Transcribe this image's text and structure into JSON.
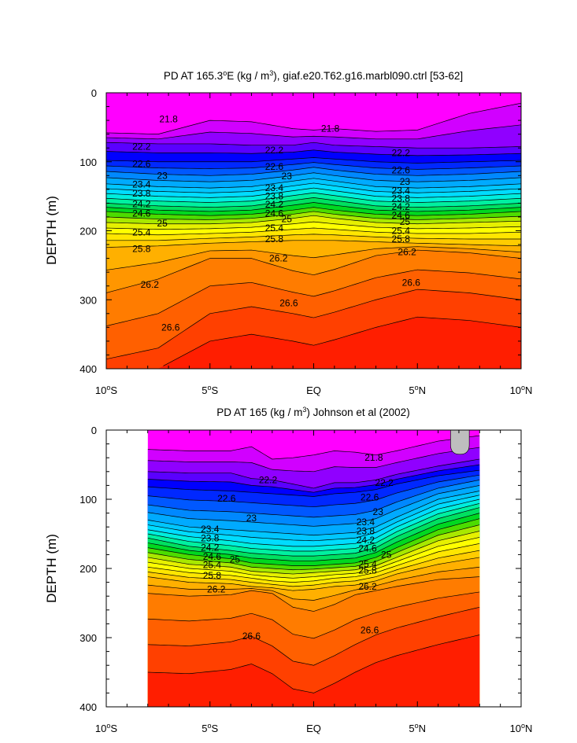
{
  "chart_data": [
    {
      "type": "contour",
      "title_parts": [
        "PD AT 165.3",
        "o",
        "E (kg / m",
        "3",
        "), giaf.e20.T62.g16.marbl090.ctrl [53-62]"
      ],
      "ylabel": "DEPTH (m)",
      "xlabel": "",
      "xlim": [
        -10,
        10
      ],
      "ylim": [
        400,
        0
      ],
      "y_inverted": true,
      "data_xlim": [
        -10,
        10
      ],
      "yticks": [
        0,
        100,
        200,
        300,
        400
      ],
      "xticks": [
        -10,
        -5,
        0,
        5,
        10
      ],
      "xtick_labels": [
        {
          "pre": "10",
          "sup": "o",
          "post": "S"
        },
        {
          "pre": "5",
          "sup": "o",
          "post": "S"
        },
        {
          "pre": "EQ",
          "sup": "",
          "post": ""
        },
        {
          "pre": "5",
          "sup": "o",
          "post": "N"
        },
        {
          "pre": "10",
          "sup": "o",
          "post": "N"
        }
      ],
      "levels": [
        21.8,
        22.2,
        22.6,
        23,
        23.4,
        23.8,
        24.2,
        24.6,
        25,
        25.4,
        25.8,
        26.2,
        26.6
      ],
      "level_step": 0.2,
      "isopycnal_depths": {
        "x": [
          -10,
          -7.5,
          -5,
          -3,
          -1,
          0,
          1,
          3,
          5,
          7.5,
          10
        ],
        "21.8": [
          58,
          60,
          40,
          42,
          52,
          54,
          52,
          56,
          54,
          30,
          15
        ],
        "22.2": [
          72,
          74,
          74,
          76,
          76,
          72,
          76,
          78,
          80,
          80,
          78
        ],
        "22.6": [
          98,
          100,
          100,
          100,
          96,
          94,
          96,
          100,
          102,
          100,
          98
        ],
        "23": [
          114,
          118,
          120,
          118,
          112,
          108,
          112,
          118,
          120,
          118,
          114
        ],
        "23.4": [
          132,
          136,
          138,
          136,
          128,
          124,
          128,
          136,
          138,
          136,
          132
        ],
        "23.8": [
          146,
          150,
          152,
          150,
          142,
          138,
          142,
          150,
          152,
          150,
          146
        ],
        "24.2": [
          160,
          164,
          166,
          164,
          156,
          152,
          156,
          164,
          166,
          164,
          160
        ],
        "24.6": [
          172,
          176,
          178,
          176,
          170,
          166,
          170,
          176,
          178,
          176,
          172
        ],
        "25": [
          188,
          190,
          190,
          188,
          182,
          178,
          182,
          188,
          190,
          188,
          186
        ],
        "25.4": [
          204,
          206,
          204,
          202,
          198,
          196,
          198,
          202,
          204,
          204,
          202
        ],
        "25.8": [
          224,
          222,
          218,
          216,
          214,
          214,
          214,
          216,
          218,
          220,
          222
        ],
        "26.2": [
          290,
          270,
          240,
          240,
          258,
          264,
          256,
          236,
          228,
          232,
          240
        ],
        "26.6": [
          386,
          370,
          320,
          310,
          320,
          326,
          318,
          300,
          285,
          290,
          300
        ]
      },
      "labels": [
        {
          "text": "21.8",
          "x": -7.0,
          "y": 38
        },
        {
          "text": "21.8",
          "x": 0.8,
          "y": 52
        },
        {
          "text": "22.2",
          "x": -8.3,
          "y": 78
        },
        {
          "text": "22.2",
          "x": -1.9,
          "y": 83
        },
        {
          "text": "22.2",
          "x": 4.2,
          "y": 87
        },
        {
          "text": "22.6",
          "x": -8.3,
          "y": 103
        },
        {
          "text": "22.6",
          "x": -1.9,
          "y": 107
        },
        {
          "text": "22.6",
          "x": 4.2,
          "y": 112
        },
        {
          "text": "23",
          "x": -7.3,
          "y": 120
        },
        {
          "text": "23",
          "x": -1.3,
          "y": 121
        },
        {
          "text": "23",
          "x": 4.4,
          "y": 129
        },
        {
          "text": "23.4",
          "x": -8.3,
          "y": 133
        },
        {
          "text": "23.4",
          "x": -1.9,
          "y": 138
        },
        {
          "text": "23.4",
          "x": 4.2,
          "y": 142
        },
        {
          "text": "23.8",
          "x": -8.3,
          "y": 146
        },
        {
          "text": "23.8",
          "x": -1.9,
          "y": 150
        },
        {
          "text": "23.8",
          "x": 4.2,
          "y": 153
        },
        {
          "text": "24.2",
          "x": -8.3,
          "y": 161
        },
        {
          "text": "24.2",
          "x": -1.9,
          "y": 162
        },
        {
          "text": "24.2",
          "x": 4.2,
          "y": 165
        },
        {
          "text": "24.6",
          "x": -8.3,
          "y": 175
        },
        {
          "text": "24.6",
          "x": -1.9,
          "y": 175
        },
        {
          "text": "24.6",
          "x": 4.2,
          "y": 178
        },
        {
          "text": "25",
          "x": -7.3,
          "y": 189
        },
        {
          "text": "25",
          "x": -1.3,
          "y": 183
        },
        {
          "text": "25",
          "x": 4.4,
          "y": 187
        },
        {
          "text": "25.4",
          "x": -8.3,
          "y": 202
        },
        {
          "text": "25.4",
          "x": -1.9,
          "y": 196
        },
        {
          "text": "25.4",
          "x": 4.2,
          "y": 200
        },
        {
          "text": "25.8",
          "x": -8.3,
          "y": 226
        },
        {
          "text": "25.8",
          "x": -1.9,
          "y": 212
        },
        {
          "text": "25.8",
          "x": 4.2,
          "y": 212
        },
        {
          "text": "26.2",
          "x": -7.9,
          "y": 278
        },
        {
          "text": "26.2",
          "x": -1.7,
          "y": 240
        },
        {
          "text": "26.2",
          "x": 4.5,
          "y": 231
        },
        {
          "text": "26.6",
          "x": -6.9,
          "y": 340
        },
        {
          "text": "26.6",
          "x": -1.2,
          "y": 305
        },
        {
          "text": "26.6",
          "x": 4.7,
          "y": 275
        }
      ]
    },
    {
      "type": "contour",
      "title_parts": [
        "PD AT 165 (kg / m",
        "3",
        ") Johnson et al (2002)"
      ],
      "ylabel": "DEPTH (m)",
      "xlabel": "",
      "xlim": [
        -10,
        10
      ],
      "ylim": [
        400,
        0
      ],
      "y_inverted": true,
      "data_xlim": [
        -8,
        8
      ],
      "yticks": [
        0,
        100,
        200,
        300,
        400
      ],
      "xticks": [
        -10,
        -5,
        0,
        5,
        10
      ],
      "xtick_labels": [
        {
          "pre": "10",
          "sup": "o",
          "post": "S"
        },
        {
          "pre": "5",
          "sup": "o",
          "post": "S"
        },
        {
          "pre": "EQ",
          "sup": "",
          "post": ""
        },
        {
          "pre": "5",
          "sup": "o",
          "post": "N"
        },
        {
          "pre": "10",
          "sup": "o",
          "post": "N"
        }
      ],
      "levels": [
        21.8,
        22.2,
        22.6,
        23,
        23.4,
        23.8,
        24.2,
        24.6,
        25,
        25.4,
        25.8,
        26.2,
        26.6
      ],
      "level_step": 0.2,
      "isopycnal_depths": {
        "x": [
          -8,
          -6,
          -4,
          -3,
          -2,
          -1,
          0,
          1,
          2,
          3,
          4,
          6,
          8
        ],
        "21.8": [
          28,
          30,
          30,
          24,
          42,
          40,
          36,
          30,
          32,
          36,
          30,
          16,
          8
        ],
        "22.2": [
          60,
          62,
          62,
          70,
          72,
          78,
          84,
          76,
          76,
          72,
          64,
          52,
          42
        ],
        "22.6": [
          82,
          86,
          88,
          90,
          92,
          94,
          96,
          92,
          90,
          86,
          78,
          66,
          58
        ],
        "23": [
          108,
          116,
          118,
          120,
          122,
          124,
          126,
          124,
          122,
          116,
          104,
          84,
          72
        ],
        "23.4": [
          130,
          140,
          144,
          146,
          148,
          150,
          152,
          150,
          148,
          140,
          126,
          100,
          88
        ],
        "23.8": [
          144,
          154,
          160,
          164,
          166,
          168,
          168,
          166,
          164,
          156,
          140,
          114,
          100
        ],
        "24.2": [
          156,
          168,
          174,
          178,
          180,
          182,
          182,
          180,
          178,
          170,
          154,
          128,
          112
        ],
        "24.6": [
          170,
          180,
          186,
          192,
          194,
          196,
          196,
          194,
          192,
          184,
          170,
          144,
          128
        ],
        "25": [
          184,
          194,
          198,
          204,
          206,
          208,
          206,
          204,
          202,
          196,
          184,
          160,
          146
        ],
        "25.4": [
          198,
          206,
          210,
          214,
          218,
          220,
          218,
          214,
          212,
          206,
          196,
          176,
          164
        ],
        "25.8": [
          212,
          220,
          222,
          226,
          228,
          232,
          230,
          226,
          224,
          218,
          208,
          194,
          184
        ],
        "26.2": [
          236,
          240,
          238,
          232,
          236,
          256,
          262,
          252,
          238,
          232,
          226,
          216,
          212
        ],
        "26.6": [
          310,
          312,
          306,
          298,
          312,
          334,
          340,
          326,
          310,
          296,
          286,
          270,
          256
        ]
      },
      "labels": [
        {
          "text": "21.8",
          "x": 2.9,
          "y": 40
        },
        {
          "text": "22.2",
          "x": -2.2,
          "y": 72
        },
        {
          "text": "22.2",
          "x": 3.4,
          "y": 76
        },
        {
          "text": "22.6",
          "x": -4.2,
          "y": 99
        },
        {
          "text": "22.6",
          "x": 2.7,
          "y": 97
        },
        {
          "text": "23",
          "x": -3.0,
          "y": 127
        },
        {
          "text": "23",
          "x": 3.1,
          "y": 118
        },
        {
          "text": "23.4",
          "x": -5.0,
          "y": 143
        },
        {
          "text": "23.4",
          "x": 2.5,
          "y": 133
        },
        {
          "text": "23.8",
          "x": -5.0,
          "y": 156
        },
        {
          "text": "23.8",
          "x": 2.5,
          "y": 146
        },
        {
          "text": "24.2",
          "x": -5.0,
          "y": 170
        },
        {
          "text": "24.2",
          "x": 2.5,
          "y": 159
        },
        {
          "text": "24.6",
          "x": -4.9,
          "y": 183
        },
        {
          "text": "24.6",
          "x": 2.6,
          "y": 171
        },
        {
          "text": "25",
          "x": -3.8,
          "y": 187
        },
        {
          "text": "25",
          "x": 3.5,
          "y": 180
        },
        {
          "text": "25.4",
          "x": -4.9,
          "y": 195
        },
        {
          "text": "25.4",
          "x": 2.6,
          "y": 194
        },
        {
          "text": "25.8",
          "x": -4.9,
          "y": 210
        },
        {
          "text": "25.8",
          "x": 2.6,
          "y": 203
        },
        {
          "text": "26.2",
          "x": -4.7,
          "y": 230
        },
        {
          "text": "26.2",
          "x": 2.6,
          "y": 226
        },
        {
          "text": "26.6",
          "x": -3.0,
          "y": 298
        },
        {
          "text": "26.6",
          "x": 2.7,
          "y": 289
        }
      ],
      "masked_region": {
        "x": [
          6.6,
          7.5
        ],
        "y": [
          0,
          35
        ],
        "color": "#bebebe"
      }
    }
  ],
  "colors": {
    "ramp": [
      "#ff00ff",
      "#d100ff",
      "#9000ff",
      "#5a00ff",
      "#0000ff",
      "#0028ff",
      "#0058ff",
      "#0088ff",
      "#00aaff",
      "#00c6ff",
      "#00dcff",
      "#00eedd",
      "#00f0a0",
      "#00e060",
      "#00d820",
      "#4cdc00",
      "#a8e800",
      "#e6f000",
      "#ffff00",
      "#ffe600",
      "#ffcc00",
      "#ffb000",
      "#ff9600",
      "#ff7c00",
      "#ff6000",
      "#ff4000",
      "#ff1e00",
      "#e80000",
      "#cc0000",
      "#b00000"
    ],
    "contour_line": "#000000",
    "background": "#ffffff"
  }
}
